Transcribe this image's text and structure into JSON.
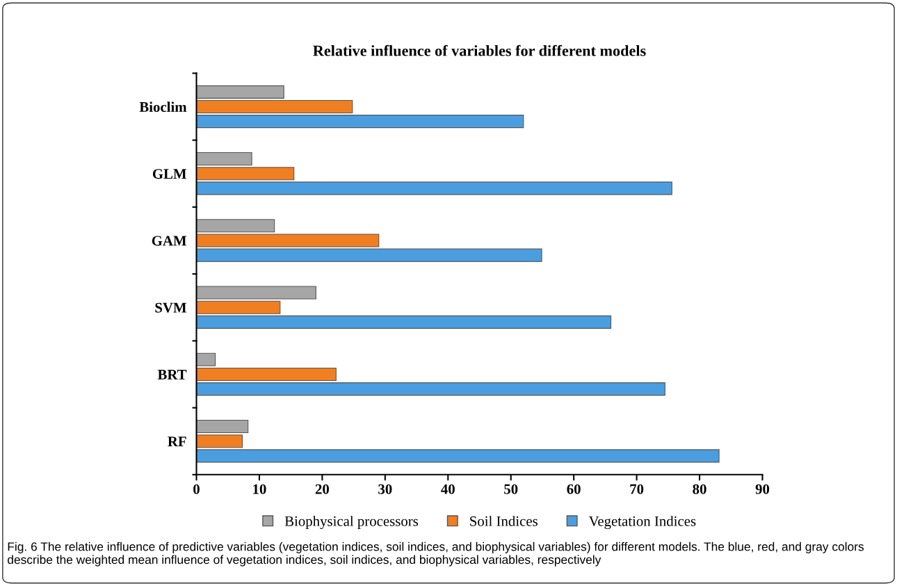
{
  "chart_data": {
    "type": "bar",
    "orientation": "horizontal",
    "title": "Relative influence of variables for different models",
    "categories": [
      "Bioclim",
      "GLM",
      "GAM",
      "SVM",
      "BRT",
      "RF"
    ],
    "series": [
      {
        "name": "Biophysical processors",
        "color": "#a6a6a6",
        "values": [
          13.9,
          8.8,
          12.4,
          19.0,
          3.0,
          8.2
        ]
      },
      {
        "name": "Soil Indices",
        "color": "#f07f22",
        "values": [
          24.8,
          15.5,
          29.0,
          13.3,
          22.2,
          7.3
        ]
      },
      {
        "name": "Vegetation Indices",
        "color": "#4a9ee0",
        "values": [
          52.0,
          75.6,
          54.9,
          65.9,
          74.5,
          83.1
        ]
      }
    ],
    "xlim": [
      0,
      90
    ],
    "xticks": [
      0,
      10,
      20,
      30,
      40,
      50,
      60,
      70,
      80,
      90
    ],
    "grid": false,
    "legend": "bottom",
    "annotations": [
      "Fig. 6 The relative influence of predictive variables (vegetation indices, soil indices, and biophysical variables) for different models. The blue, red, and gray colors describe the weighted mean influence of vegetation indices, soil indices, and biophysical variables, respectively"
    ]
  }
}
